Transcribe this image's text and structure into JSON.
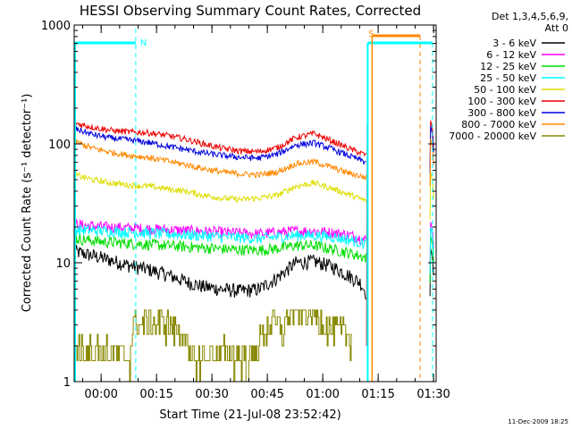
{
  "chart_data": {
    "type": "line",
    "title": "HESSI Observing Summary Count Rates, Corrected",
    "xlabel": "Start Time (21-Jul-08 23:52:42)",
    "ylabel": "Corrected Count Rate (s⁻¹ detector⁻¹)",
    "ylog": true,
    "ylim": [
      1,
      1000
    ],
    "xlim": [
      0,
      5880
    ],
    "x_unit": "seconds after 23:52:42",
    "x_ticks": [
      {
        "t": 438,
        "label": "00:00"
      },
      {
        "t": 1338,
        "label": "00:15"
      },
      {
        "t": 2238,
        "label": "00:30"
      },
      {
        "t": 3138,
        "label": "00:45"
      },
      {
        "t": 4038,
        "label": "01:00"
      },
      {
        "t": 4938,
        "label": "01:15"
      },
      {
        "t": 5838,
        "label": "01:30"
      }
    ],
    "y_ticks": [
      {
        "v": 1,
        "label": "1"
      },
      {
        "v": 10,
        "label": "10"
      },
      {
        "v": 100,
        "label": "100"
      },
      {
        "v": 1000,
        "label": "1000"
      }
    ],
    "legend_header": [
      "Det 1,3,4,5,6,9,",
      "Att 0"
    ],
    "legend_position": "right",
    "series": [
      {
        "name": "3 - 6 keV",
        "color": "#000000",
        "x": [
          0,
          300,
          600,
          900,
          1200,
          1500,
          1800,
          2100,
          2400,
          2700,
          3000,
          3300,
          3600,
          3900,
          4200,
          4500,
          4650,
          4750
        ],
        "values": [
          12.5,
          11.5,
          10.5,
          9.5,
          8.8,
          8.0,
          7.0,
          6.3,
          6.0,
          5.8,
          6.0,
          7.5,
          10.0,
          10.3,
          9.3,
          7.6,
          6.8,
          5.5
        ]
      },
      {
        "name": "6 - 12 keV",
        "color": "#ff00ff",
        "x": [
          0,
          500,
          1000,
          1500,
          2000,
          2500,
          3000,
          3300,
          3600,
          3900,
          4200,
          4500,
          4750
        ],
        "values": [
          21,
          20,
          19.5,
          19,
          18.5,
          18,
          17.5,
          18,
          18.5,
          18.5,
          18,
          17,
          15.5
        ]
      },
      {
        "name": "12 - 25 keV",
        "color": "#00dd00",
        "x": [
          0,
          500,
          1000,
          1500,
          2000,
          2500,
          3000,
          3300,
          3600,
          3900,
          4200,
          4500,
          4750
        ],
        "values": [
          16,
          15,
          14.5,
          14,
          13.5,
          13,
          12.8,
          13.2,
          14,
          14,
          13,
          12,
          11
        ]
      },
      {
        "name": "25 - 50 keV",
        "color": "#00ffff",
        "x": [
          0,
          500,
          1000,
          1500,
          2000,
          2500,
          3000,
          3300,
          3600,
          3900,
          4200,
          4500,
          4750
        ],
        "values": [
          19,
          18.5,
          18,
          17.5,
          17,
          16.5,
          16,
          16.5,
          17,
          17,
          16.5,
          15.5,
          14.5
        ]
      },
      {
        "name": "50 - 100 keV",
        "color": "#dddd00",
        "x": [
          0,
          300,
          600,
          900,
          1200,
          1500,
          1800,
          2100,
          2400,
          2700,
          3000,
          3300,
          3600,
          3900,
          4200,
          4500,
          4750
        ],
        "values": [
          55,
          50,
          47,
          45,
          44,
          42,
          40,
          37,
          35,
          34,
          35,
          37,
          44,
          47,
          42,
          37,
          33
        ]
      },
      {
        "name": "100 - 300 keV",
        "color": "#ee0000",
        "x": [
          0,
          300,
          600,
          900,
          1200,
          1500,
          1800,
          2100,
          2400,
          2700,
          3000,
          3300,
          3600,
          3900,
          4200,
          4500,
          4750
        ],
        "values": [
          150,
          138,
          130,
          126,
          124,
          118,
          110,
          100,
          92,
          87,
          86,
          93,
          113,
          122,
          105,
          90,
          80
        ]
      },
      {
        "name": "300 - 800 keV",
        "color": "#0000dd",
        "x": [
          0,
          300,
          600,
          900,
          1200,
          1500,
          1800,
          2100,
          2400,
          2700,
          3000,
          3300,
          3600,
          3900,
          4200,
          4500,
          4750
        ],
        "values": [
          135,
          120,
          112,
          108,
          103,
          96,
          90,
          84,
          80,
          77,
          76,
          82,
          98,
          102,
          90,
          78,
          70
        ]
      },
      {
        "name": "800 - 7000 keV",
        "color": "#ff8800",
        "x": [
          0,
          300,
          600,
          900,
          1200,
          1500,
          1800,
          2100,
          2400,
          2700,
          3000,
          3300,
          3600,
          3900,
          4200,
          4500,
          4750
        ],
        "values": [
          105,
          92,
          85,
          80,
          77,
          72,
          67,
          62,
          58,
          56,
          55,
          58,
          68,
          71,
          63,
          56,
          52
        ]
      },
      {
        "name": "7000 - 20000 keV",
        "color": "#888800",
        "x": [
          0,
          500,
          900,
          950,
          1400,
          1800,
          1850,
          2400,
          2900,
          2950,
          3200,
          3400,
          3450,
          3700,
          4000,
          4200,
          4500
        ],
        "values": [
          2,
          1.8,
          1.5,
          3,
          3.2,
          2.5,
          1.5,
          1.8,
          1.5,
          2,
          3.2,
          2.5,
          3.8,
          4,
          3.5,
          2.8,
          2.4
        ]
      }
    ],
    "annotations": [
      {
        "text": "N",
        "color": "#00ffff"
      },
      {
        "text": "S",
        "color": "#ff8800"
      }
    ]
  },
  "footer": {
    "date": "11-Dec-2009 18:25"
  }
}
